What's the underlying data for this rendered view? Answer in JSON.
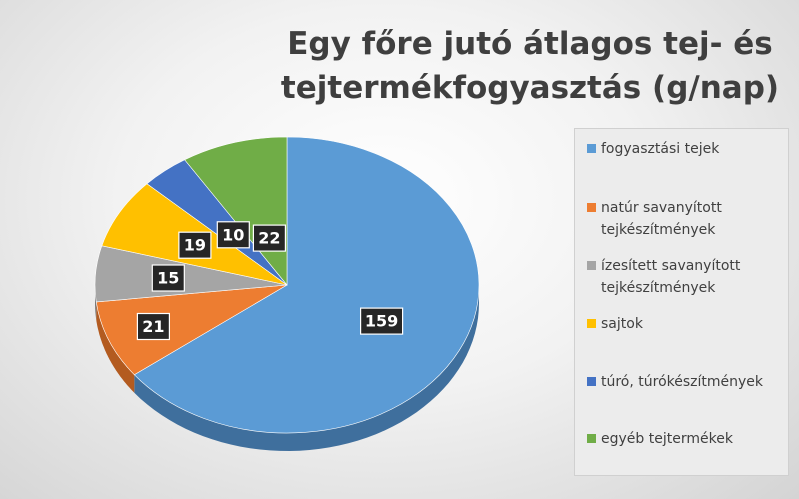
{
  "chart_data": {
    "type": "pie",
    "title": "Egy főre jutó átlagos tej- és tejtermékfogyasztás (g/nap)",
    "title_lines": [
      "Egy főre jutó átlagos tej- és",
      "tejtermékfogyasztás (g/nap)"
    ],
    "categories": [
      "fogyasztási tejek",
      "natúr savanyított tejkészítmények",
      "ízesített savanyított tejkészítmények",
      "sajtok",
      "túró, túrókészítmények",
      "egyéb tejtermékek"
    ],
    "values": [
      159,
      21,
      15,
      19,
      10,
      22
    ],
    "data_labels": [
      "159",
      "21",
      "15",
      "19",
      "10",
      "22"
    ],
    "colors": [
      "#5b9bd5",
      "#ed7d31",
      "#a5a5a5",
      "#ffc000",
      "#4472c4",
      "#70ad47"
    ],
    "dark_colors": [
      "#3f6f9d",
      "#b35b20",
      "#7a7a7a",
      "#bf9000",
      "#2f5290",
      "#4f7f31"
    ],
    "style": "3d",
    "legend_position": "right"
  },
  "legend": {
    "items": [
      {
        "label_lines": [
          "fogyasztási tejek"
        ]
      },
      {
        "label_lines": [
          "natúr savanyított",
          "tejkészítmények"
        ]
      },
      {
        "label_lines": [
          "ízesített savanyított",
          "tejkészítmények"
        ]
      },
      {
        "label_lines": [
          "sajtok"
        ]
      },
      {
        "label_lines": [
          "túró, túrókészítmények"
        ]
      },
      {
        "label_lines": [
          "egyéb tejtermékek"
        ]
      }
    ]
  }
}
